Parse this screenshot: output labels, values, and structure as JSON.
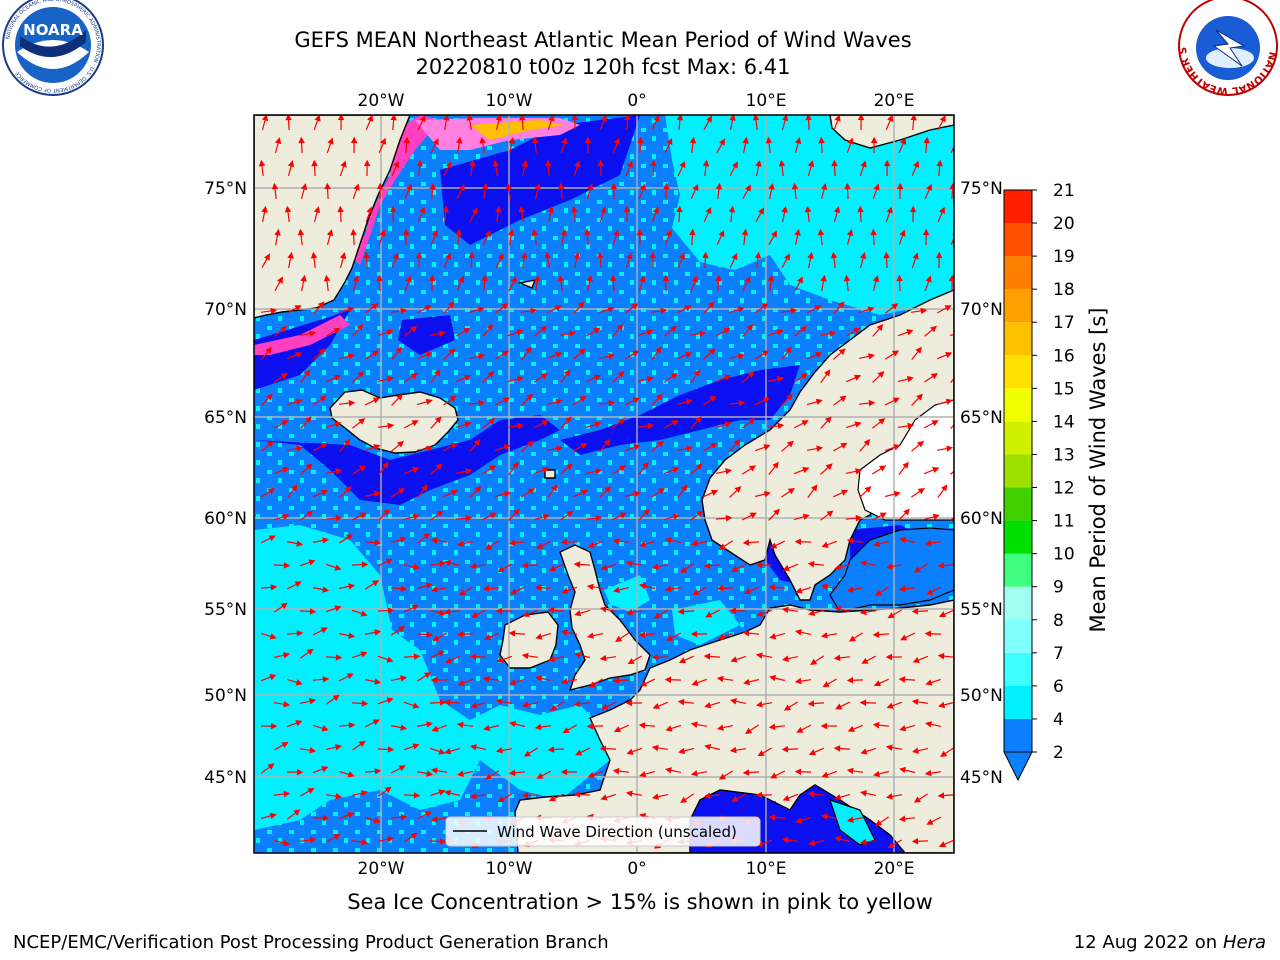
{
  "title": {
    "line1": "GEFS MEAN Northeast Atlantic Mean Period of Wind Waves",
    "line2": "20220810 t00z 120h fcst   Max: 6.41"
  },
  "logos": {
    "left": {
      "name": "NOARA",
      "ring_text": "NATIONAL OCEANIC AND ATMOSPHERIC ADMINISTRATION · U.S. DEPARTMENT OF COMMERCE"
    },
    "right": {
      "ring_text": "NATIONAL WEATHER SERVICE"
    }
  },
  "map": {
    "lon_ticks": [
      "20°W",
      "10°W",
      "0°",
      "10°E",
      "20°E"
    ],
    "lat_ticks": [
      "75°N",
      "70°N",
      "65°N",
      "60°N",
      "55°N",
      "50°N",
      "45°N"
    ],
    "legend_label": "Wind Wave Direction (unscaled)",
    "colors": {
      "land": "#eeecdc",
      "ocean_2_4": "#0a80ff",
      "ocean_0_2": "#0a10f0",
      "ocean_4_6": "#00f0ff",
      "ice_pink": "#ff40c0",
      "arrow": "#ff0000"
    }
  },
  "colorbar": {
    "title": "Mean Period of Wind Waves [s]",
    "labels": [
      "2",
      "4",
      "6",
      "7",
      "8",
      "9",
      "10",
      "11",
      "12",
      "13",
      "14",
      "15",
      "16",
      "17",
      "18",
      "19",
      "20",
      "21"
    ],
    "colors": [
      "#0a80ff",
      "#00f0ff",
      "#40ffff",
      "#80ffff",
      "#a0fff0",
      "#40ff80",
      "#00e000",
      "#40d000",
      "#a0e000",
      "#d0f000",
      "#f0ff00",
      "#ffe000",
      "#ffc000",
      "#ffa000",
      "#ff8000",
      "#ff5000",
      "#ff2000",
      "#ff0000"
    ]
  },
  "footer": {
    "caption": "Sea Ice Concentration > 15% is shown in pink to yellow",
    "credit_left": "NCEP/EMC/Verification Post Processing Product Generation Branch",
    "credit_date": "12 Aug 2022 on",
    "credit_host": "Hera"
  }
}
